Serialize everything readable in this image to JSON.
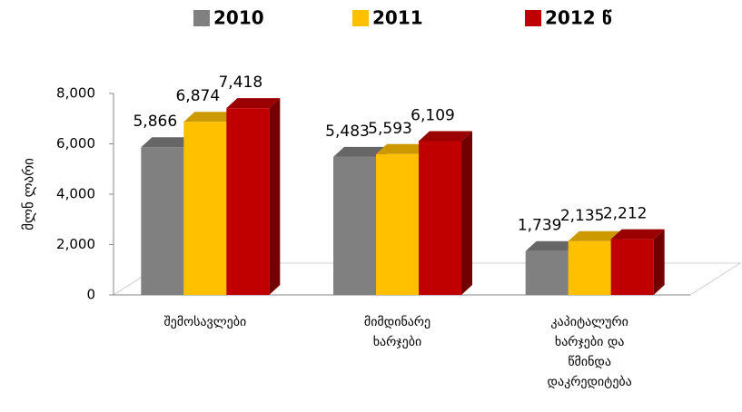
{
  "chart_data": {
    "type": "bar3d",
    "y_label": "მლნ ლარი",
    "categories": [
      "შემოსავლები",
      "მიმდინარე ხარჯები",
      "კაპიტალური ხარჯები და წმინდა დაკრედიტება"
    ],
    "series": [
      {
        "name": "2010",
        "color": "#808080",
        "values": [
          5866,
          5483,
          1739
        ],
        "value_labels": [
          "5,866",
          "5,483",
          "1,739"
        ]
      },
      {
        "name": "2011",
        "color": "#ffc000",
        "values": [
          6874,
          5593,
          2135
        ],
        "value_labels": [
          "6,874",
          "5,593",
          "2,135"
        ]
      },
      {
        "name": "2012 წ",
        "color": "#c00000",
        "values": [
          7418,
          6109,
          2212
        ],
        "value_labels": [
          "7,418",
          "6,109",
          "2,212"
        ]
      }
    ],
    "ylim": [
      0,
      8000
    ],
    "yticks": [
      0,
      {
        "value": 2000,
        "label": "2,000"
      },
      {
        "value": 4000,
        "label": "4,000"
      },
      {
        "value": 6000,
        "label": "6,000"
      },
      {
        "value": 8000,
        "label": "8,000"
      }
    ],
    "legend": "top"
  }
}
